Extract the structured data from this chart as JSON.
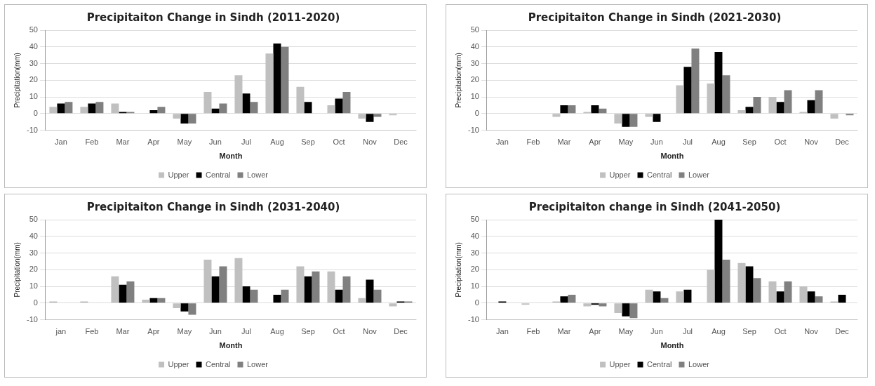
{
  "chart_data": [
    {
      "type": "bar",
      "title": "Precipitaiton Change in Sindh (2011-2020)",
      "xlabel": "Month",
      "ylabel": "Precipitation(mm)",
      "categories": [
        "Jan",
        "Feb",
        "Mar",
        "Apr",
        "May",
        "Jun",
        "Jul",
        "Aug",
        "Sep",
        "Oct",
        "Nov",
        "Dec"
      ],
      "series": [
        {
          "name": "Upper",
          "color": "#c0c0c0",
          "values": [
            4,
            4,
            6,
            0,
            -3,
            13,
            23,
            36,
            16,
            5,
            -3,
            -1
          ]
        },
        {
          "name": "Central",
          "color": "#000000",
          "values": [
            6,
            6,
            1,
            2,
            -6,
            3,
            12,
            42,
            7,
            9,
            -5,
            0
          ]
        },
        {
          "name": "Lower",
          "color": "#808080",
          "values": [
            7,
            7,
            1,
            4,
            -6,
            6,
            7,
            40,
            0,
            13,
            -2,
            0
          ]
        }
      ],
      "ylim": [
        -10,
        50
      ],
      "yticks": [
        -10,
        0,
        10,
        20,
        30,
        40,
        50
      ],
      "grid": "y",
      "legend": "bottom"
    },
    {
      "type": "bar",
      "title": "Precipitaiton Change in Sindh (2021-2030)",
      "xlabel": "Month",
      "ylabel": "Precipitation(mm)",
      "categories": [
        "Jan",
        "Feb",
        "Mar",
        "Apr",
        "May",
        "Jun",
        "Jul",
        "Aug",
        "Sep",
        "Oct",
        "Nov",
        "Dec"
      ],
      "series": [
        {
          "name": "Upper",
          "color": "#c0c0c0",
          "values": [
            0,
            0,
            -2,
            1,
            -6,
            -2,
            17,
            18,
            2,
            10,
            1,
            -3
          ]
        },
        {
          "name": "Central",
          "color": "#000000",
          "values": [
            0,
            0,
            5,
            5,
            -8,
            -5,
            28,
            37,
            4,
            7,
            8,
            0
          ]
        },
        {
          "name": "Lower",
          "color": "#808080",
          "values": [
            0,
            0,
            5,
            3,
            -8,
            0,
            39,
            23,
            10,
            14,
            14,
            -1
          ]
        }
      ],
      "ylim": [
        -10,
        50
      ],
      "yticks": [
        -10,
        0,
        10,
        20,
        30,
        40,
        50
      ],
      "grid": "y",
      "legend": "bottom"
    },
    {
      "type": "bar",
      "title": "Precipitaiton Change in Sindh (2031-2040)",
      "xlabel": "Month",
      "ylabel": "Precipitation(mm)",
      "categories": [
        "jan",
        "Feb",
        "Mar",
        "Apr",
        "May",
        "Jun",
        "Jul",
        "Aug",
        "Sep",
        "Oct",
        "Nov",
        "Dec"
      ],
      "series": [
        {
          "name": "Upper",
          "color": "#c0c0c0",
          "values": [
            1,
            1,
            16,
            2,
            -3,
            26,
            27,
            0,
            22,
            19,
            3,
            -2
          ]
        },
        {
          "name": "Central",
          "color": "#000000",
          "values": [
            0,
            0,
            11,
            3,
            -5,
            16,
            10,
            5,
            16,
            8,
            14,
            1
          ]
        },
        {
          "name": "Lower",
          "color": "#808080",
          "values": [
            0,
            0,
            13,
            3,
            -7,
            22,
            8,
            8,
            19,
            16,
            8,
            1
          ]
        }
      ],
      "ylim": [
        -10,
        50
      ],
      "yticks": [
        -10,
        0,
        10,
        20,
        30,
        40,
        50
      ],
      "grid": "y",
      "legend": "bottom"
    },
    {
      "type": "bar",
      "title": "Precipitaiton change in Sindh (2041-2050)",
      "xlabel": "Month",
      "ylabel": "Precipitation(mm)",
      "categories": [
        "Jan",
        "Feb",
        "Mar",
        "Apr",
        "May",
        "Jun",
        "Jul",
        "Aug",
        "Sep",
        "Oct",
        "Nov",
        "Dec"
      ],
      "series": [
        {
          "name": "Upper",
          "color": "#c0c0c0",
          "values": [
            0,
            -1,
            1,
            -2,
            -6,
            8,
            7,
            20,
            24,
            13,
            10,
            1
          ]
        },
        {
          "name": "Central",
          "color": "#000000",
          "values": [
            1,
            0,
            4,
            -1,
            -8,
            7,
            8,
            50,
            22,
            7,
            7,
            5
          ]
        },
        {
          "name": "Lower",
          "color": "#808080",
          "values": [
            0,
            0,
            5,
            -2,
            -9,
            3,
            0,
            26,
            15,
            13,
            4,
            0
          ]
        }
      ],
      "ylim": [
        -10,
        50
      ],
      "yticks": [
        -10,
        0,
        10,
        20,
        30,
        40,
        50
      ],
      "grid": "y",
      "legend": "bottom"
    }
  ]
}
